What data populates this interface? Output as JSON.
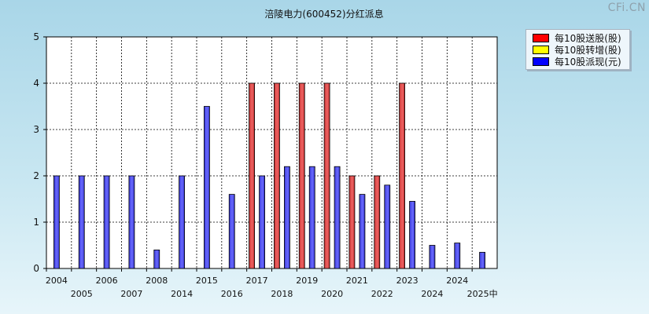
{
  "watermark": "CFi.CN",
  "legend": [
    {
      "label": "每10股送股(股)",
      "color": "#ff0000"
    },
    {
      "label": "每10股转增(股)",
      "color": "#ffff00"
    },
    {
      "label": "每10股派现(元)",
      "color": "#0000ff"
    }
  ],
  "chart_data": {
    "type": "bar",
    "title": "涪陵电力(600452)分红派息",
    "xlabel": "",
    "ylabel": "",
    "ylim": [
      0,
      5
    ],
    "yticks": [
      0,
      1,
      2,
      3,
      4,
      5
    ],
    "grid": true,
    "legend_position": "top-right",
    "categories": [
      "2004",
      "2005",
      "2006",
      "2007",
      "2008",
      "2014",
      "2015",
      "2016",
      "2017",
      "2018",
      "2019",
      "2020",
      "2021",
      "2022",
      "2023",
      "2024",
      "2024",
      "2025中"
    ],
    "series": [
      {
        "name": "每10股送股(股)",
        "color": "#ff0000",
        "values": [
          0,
          0,
          0,
          0,
          0,
          0,
          0,
          0,
          4,
          4,
          4,
          4,
          2,
          2,
          4,
          0,
          0,
          0
        ]
      },
      {
        "name": "每10股转增(股)",
        "color": "#ffff00",
        "values": [
          0,
          0,
          0,
          0,
          0,
          0,
          0,
          0,
          0,
          0,
          0,
          0,
          0,
          0,
          0,
          0,
          0,
          0
        ]
      },
      {
        "name": "每10股派现(元)",
        "color": "#0000ff",
        "values": [
          2,
          2,
          2,
          2,
          0.4,
          2,
          3.5,
          1.6,
          2,
          2.2,
          2.2,
          2.2,
          1.6,
          1.8,
          1.45,
          0.5,
          0.55,
          0.35
        ]
      }
    ]
  }
}
